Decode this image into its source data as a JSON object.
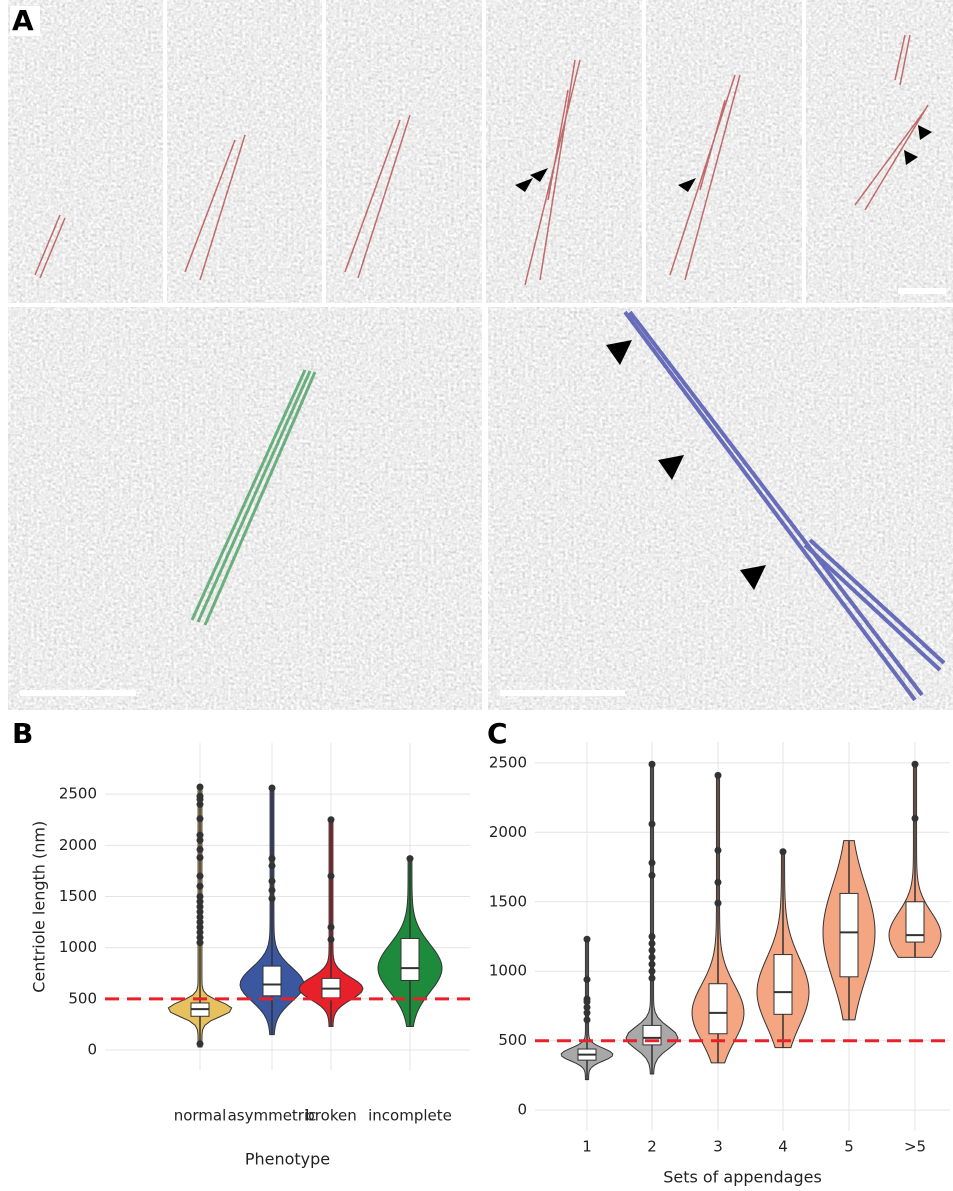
{
  "panel_a": {
    "label": "A"
  },
  "chart_data": [
    {
      "type": "violin",
      "panel_label": "B",
      "x_label": "Phenotype",
      "y_label": "Centriole length (nm)",
      "ylim": [
        -200,
        3000
      ],
      "yticks": [
        0,
        500,
        1000,
        1500,
        2000,
        2500
      ],
      "grid": true,
      "hline": 500,
      "hline_color": "#e8202a",
      "categories": [
        "normal",
        "asymmetric",
        "broken",
        "incomplete"
      ],
      "series": [
        {
          "color": "#e8c15f",
          "min": 30,
          "q1": 330,
          "median": 400,
          "q3": 460,
          "max": 2570,
          "outliers": [
            2570,
            2480,
            2450,
            2400,
            2260,
            2100,
            2050,
            1960,
            1880,
            1700,
            1600,
            1500,
            1450,
            1400,
            1350,
            1300,
            1250,
            1200,
            1150,
            1100,
            1050,
            60
          ]
        },
        {
          "color": "#3a57a0",
          "min": 150,
          "q1": 530,
          "median": 640,
          "q3": 820,
          "max": 2560,
          "outliers": [
            2560,
            1870,
            1800,
            1650,
            1560,
            1480
          ]
        },
        {
          "color": "#e8202a",
          "min": 230,
          "q1": 510,
          "median": 600,
          "q3": 700,
          "max": 2250,
          "outliers": [
            2250,
            1700,
            1200,
            1080
          ]
        },
        {
          "color": "#1e8a3c",
          "min": 230,
          "q1": 680,
          "median": 800,
          "q3": 1090,
          "max": 1870,
          "outliers": [
            1870
          ]
        }
      ]
    },
    {
      "type": "violin",
      "panel_label": "C",
      "x_label": "Sets of appendages",
      "ylim": [
        -150,
        2650
      ],
      "yticks": [
        0,
        500,
        1000,
        1500,
        2000,
        2500
      ],
      "grid": true,
      "hline": 500,
      "hline_color": "#e8202a",
      "categories": [
        "1",
        "2",
        "3",
        "4",
        "5",
        ">5"
      ],
      "series": [
        {
          "color": "#a8a8a8",
          "min": 220,
          "q1": 360,
          "median": 400,
          "q3": 440,
          "max": 1230,
          "outliers": [
            1230,
            940,
            800,
            780,
            740,
            700,
            650
          ]
        },
        {
          "color": "#a8a8a8",
          "min": 260,
          "q1": 470,
          "median": 520,
          "q3": 610,
          "max": 2490,
          "outliers": [
            2490,
            2060,
            1780,
            1690,
            1250,
            1200,
            1150,
            1100,
            1050,
            1000,
            950
          ]
        },
        {
          "color": "#f4a582",
          "min": 340,
          "q1": 550,
          "median": 700,
          "q3": 910,
          "max": 2410,
          "outliers": [
            2410,
            1870,
            1640,
            1490
          ]
        },
        {
          "color": "#f4a582",
          "min": 450,
          "q1": 690,
          "median": 850,
          "q3": 1120,
          "max": 1860,
          "outliers": [
            1860
          ]
        },
        {
          "color": "#f4a582",
          "min": 650,
          "q1": 960,
          "median": 1280,
          "q3": 1560,
          "max": 1940,
          "outliers": []
        },
        {
          "color": "#f4a582",
          "min": 1100,
          "q1": 1210,
          "median": 1260,
          "q3": 1500,
          "max": 2490,
          "outliers": [
            2490,
            2100
          ]
        }
      ]
    }
  ]
}
